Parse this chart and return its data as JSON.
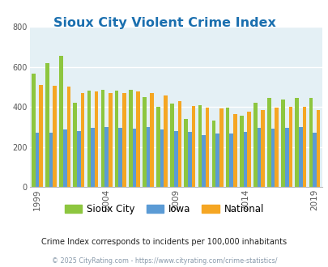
{
  "title": "Sioux City Violent Crime Index",
  "title_color": "#1a6faf",
  "subtitle": "Crime Index corresponds to incidents per 100,000 inhabitants",
  "footer": "© 2025 CityRating.com - https://www.cityrating.com/crime-statistics/",
  "years": [
    1999,
    2000,
    2001,
    2002,
    2003,
    2004,
    2005,
    2006,
    2007,
    2008,
    2009,
    2010,
    2011,
    2012,
    2013,
    2014,
    2015,
    2016,
    2017,
    2018,
    2019
  ],
  "sioux_city": [
    565,
    618,
    655,
    420,
    480,
    485,
    480,
    485,
    450,
    400,
    415,
    340,
    410,
    330,
    395,
    355,
    420,
    445,
    435,
    445,
    445
  ],
  "iowa": [
    270,
    270,
    285,
    280,
    295,
    300,
    295,
    290,
    300,
    285,
    280,
    275,
    260,
    265,
    265,
    275,
    295,
    290,
    295,
    300,
    270
  ],
  "national": [
    510,
    505,
    500,
    470,
    475,
    470,
    470,
    475,
    470,
    455,
    430,
    405,
    395,
    390,
    365,
    375,
    385,
    395,
    400,
    400,
    385
  ],
  "colors": {
    "sioux_city": "#8dc63f",
    "iowa": "#5b9bd5",
    "national": "#f5a623"
  },
  "bg_color": "#e4f0f5",
  "ylim": [
    0,
    800
  ],
  "yticks": [
    0,
    200,
    400,
    600,
    800
  ],
  "tick_years": [
    1999,
    2004,
    2009,
    2014,
    2019
  ],
  "bar_width": 0.27
}
